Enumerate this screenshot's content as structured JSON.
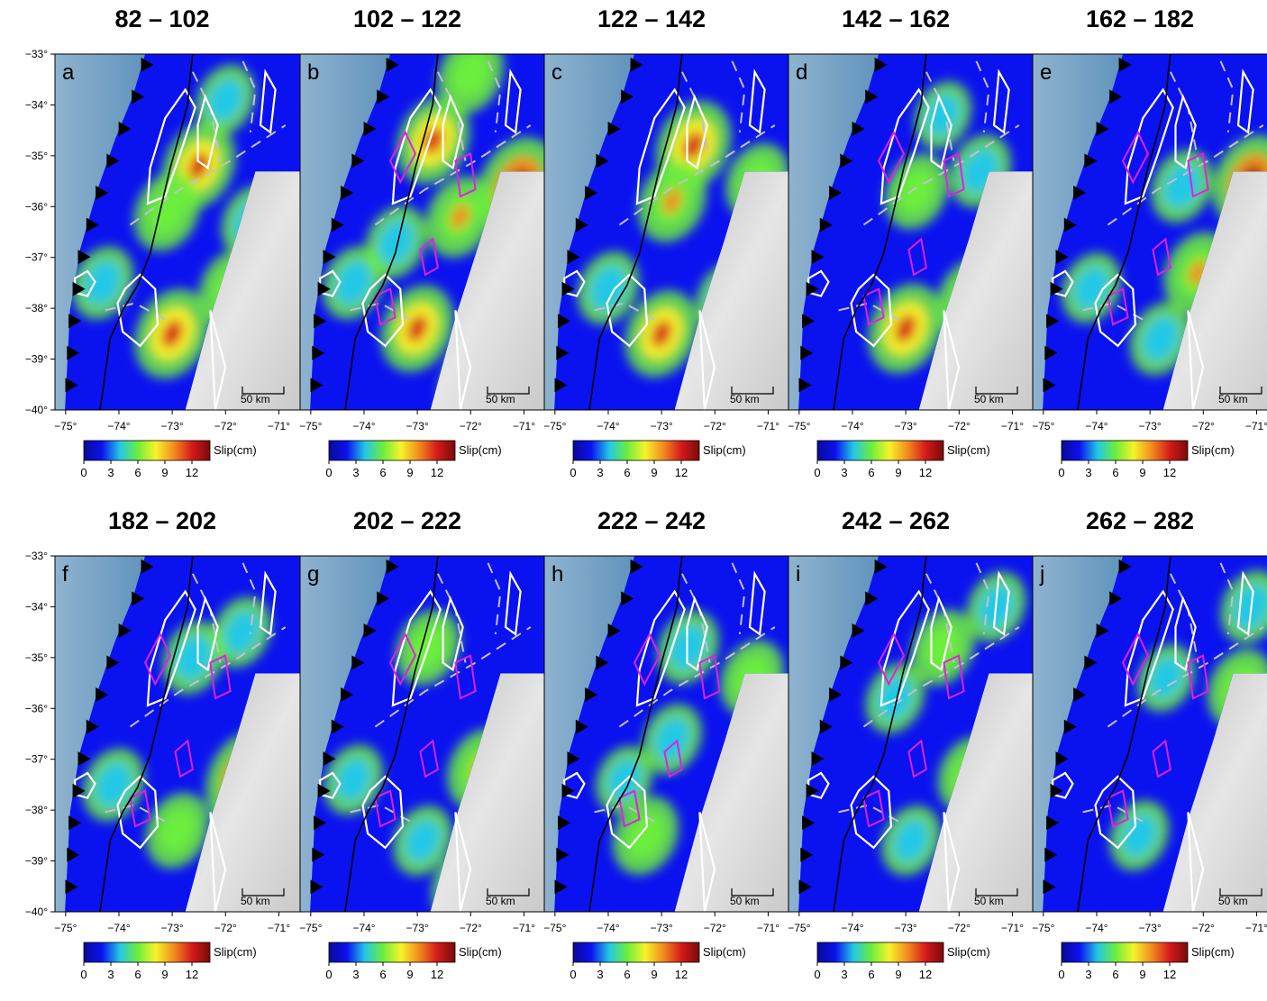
{
  "colorbar": {
    "label": "Slip(cm)",
    "ticks": [
      0,
      3,
      6,
      9,
      12
    ],
    "range": [
      0,
      14
    ],
    "colors": [
      "#0a0a96",
      "#0b12f0",
      "#22c8e6",
      "#6cee3c",
      "#f6f32a",
      "#f28c1e",
      "#d61a1a",
      "#7a0a0a"
    ]
  },
  "axes": {
    "lon_ticks": [
      "−75°",
      "−74°",
      "−73°",
      "−72°",
      "−71°"
    ],
    "lat_ticks": [
      "−33°",
      "−34°",
      "−35°",
      "−36°",
      "−37°",
      "−38°",
      "−39°",
      "−40°"
    ],
    "lon_range": [
      -75.2,
      -70.5
    ],
    "lat_range": [
      -40,
      -33
    ]
  },
  "scale_bar": {
    "label": "50 km"
  },
  "line_colors": {
    "slip_contour": "#ffffff",
    "prior_contour_dashed": "#c0c0d0",
    "high_slip_contour": "#e020e0",
    "coastline": "#000000",
    "ocean": "#4f87b5",
    "land": "#d7d7d7"
  },
  "panels": [
    {
      "letter": "a",
      "title": "82 – 102",
      "has_magenta": false,
      "blobs": [
        {
          "lon": -72.5,
          "lat": -35.2,
          "v": 10
        },
        {
          "lon": -73.1,
          "lat": -36.1,
          "v": 7
        },
        {
          "lon": -73.0,
          "lat": -38.5,
          "v": 11
        },
        {
          "lon": -74.3,
          "lat": -37.5,
          "v": 5
        },
        {
          "lon": -71.9,
          "lat": -37.6,
          "v": 6
        },
        {
          "lon": -71.5,
          "lat": -36.3,
          "v": 5
        },
        {
          "lon": -72.0,
          "lat": -33.9,
          "v": 4
        }
      ]
    },
    {
      "letter": "b",
      "title": "102 – 122",
      "has_magenta": true,
      "blobs": [
        {
          "lon": -72.7,
          "lat": -34.7,
          "v": 10
        },
        {
          "lon": -71.1,
          "lat": -35.6,
          "v": 14
        },
        {
          "lon": -73.0,
          "lat": -38.4,
          "v": 10
        },
        {
          "lon": -72.2,
          "lat": -36.2,
          "v": 8
        },
        {
          "lon": -74.2,
          "lat": -37.5,
          "v": 5
        },
        {
          "lon": -71.9,
          "lat": -39.5,
          "v": 10
        },
        {
          "lon": -72.0,
          "lat": -33.4,
          "v": 7
        },
        {
          "lon": -73.4,
          "lat": -36.7,
          "v": 5
        }
      ]
    },
    {
      "letter": "c",
      "title": "122 – 142",
      "has_magenta": false,
      "blobs": [
        {
          "lon": -72.4,
          "lat": -34.8,
          "v": 11
        },
        {
          "lon": -72.8,
          "lat": -35.9,
          "v": 8
        },
        {
          "lon": -73.0,
          "lat": -38.5,
          "v": 10
        },
        {
          "lon": -71.2,
          "lat": -35.5,
          "v": 6
        },
        {
          "lon": -74.0,
          "lat": -37.6,
          "v": 5
        },
        {
          "lon": -71.8,
          "lat": -37.8,
          "v": 4
        }
      ]
    },
    {
      "letter": "d",
      "title": "142 – 162",
      "has_magenta": true,
      "blobs": [
        {
          "lon": -73.0,
          "lat": -38.4,
          "v": 11
        },
        {
          "lon": -72.8,
          "lat": -35.7,
          "v": 6
        },
        {
          "lon": -71.8,
          "lat": -37.8,
          "v": 7
        },
        {
          "lon": -71.6,
          "lat": -35.3,
          "v": 5
        },
        {
          "lon": -72.3,
          "lat": -34.2,
          "v": 3
        }
      ]
    },
    {
      "letter": "e",
      "title": "162 – 182",
      "has_magenta": true,
      "blobs": [
        {
          "lon": -71.1,
          "lat": -35.5,
          "v": 12
        },
        {
          "lon": -72.1,
          "lat": -37.3,
          "v": 8
        },
        {
          "lon": -72.8,
          "lat": -38.6,
          "v": 5
        },
        {
          "lon": -72.4,
          "lat": -35.6,
          "v": 5
        },
        {
          "lon": -71.6,
          "lat": -38.2,
          "v": 6
        },
        {
          "lon": -74.1,
          "lat": -37.6,
          "v": 4
        }
      ]
    },
    {
      "letter": "f",
      "title": "182 – 202",
      "has_magenta": true,
      "blobs": [
        {
          "lon": -71.6,
          "lat": -37.4,
          "v": 14
        },
        {
          "lon": -72.9,
          "lat": -38.4,
          "v": 6
        },
        {
          "lon": -74.1,
          "lat": -37.5,
          "v": 5
        },
        {
          "lon": -72.6,
          "lat": -35.0,
          "v": 5
        },
        {
          "lon": -71.7,
          "lat": -34.5,
          "v": 4
        }
      ]
    },
    {
      "letter": "g",
      "title": "202 – 222",
      "has_magenta": true,
      "blobs": [
        {
          "lon": -71.8,
          "lat": -37.2,
          "v": 8
        },
        {
          "lon": -72.8,
          "lat": -34.8,
          "v": 6
        },
        {
          "lon": -72.9,
          "lat": -38.6,
          "v": 4
        },
        {
          "lon": -74.2,
          "lat": -37.4,
          "v": 4
        },
        {
          "lon": -72.2,
          "lat": -39.5,
          "v": 3
        }
      ]
    },
    {
      "letter": "h",
      "title": "222 – 242",
      "has_magenta": true,
      "blobs": [
        {
          "lon": -73.3,
          "lat": -38.5,
          "v": 7
        },
        {
          "lon": -71.3,
          "lat": -35.4,
          "v": 6
        },
        {
          "lon": -72.5,
          "lat": -34.8,
          "v": 5
        },
        {
          "lon": -72.8,
          "lat": -36.6,
          "v": 4
        },
        {
          "lon": -73.7,
          "lat": -37.4,
          "v": 3
        }
      ]
    },
    {
      "letter": "i",
      "title": "242 – 262",
      "has_magenta": true,
      "blobs": [
        {
          "lon": -72.3,
          "lat": -34.8,
          "v": 6
        },
        {
          "lon": -71.8,
          "lat": -37.3,
          "v": 6
        },
        {
          "lon": -72.9,
          "lat": -38.6,
          "v": 4
        },
        {
          "lon": -73.2,
          "lat": -35.8,
          "v": 4
        },
        {
          "lon": -71.3,
          "lat": -34.0,
          "v": 4
        }
      ]
    },
    {
      "letter": "j",
      "title": "262 – 282",
      "has_magenta": true,
      "blobs": [
        {
          "lon": -71.7,
          "lat": -39.5,
          "v": 8
        },
        {
          "lon": -71.3,
          "lat": -35.6,
          "v": 7
        },
        {
          "lon": -71.1,
          "lat": -34.0,
          "v": 5
        },
        {
          "lon": -73.2,
          "lat": -38.5,
          "v": 4
        },
        {
          "lon": -72.7,
          "lat": -35.4,
          "v": 3
        }
      ]
    }
  ]
}
